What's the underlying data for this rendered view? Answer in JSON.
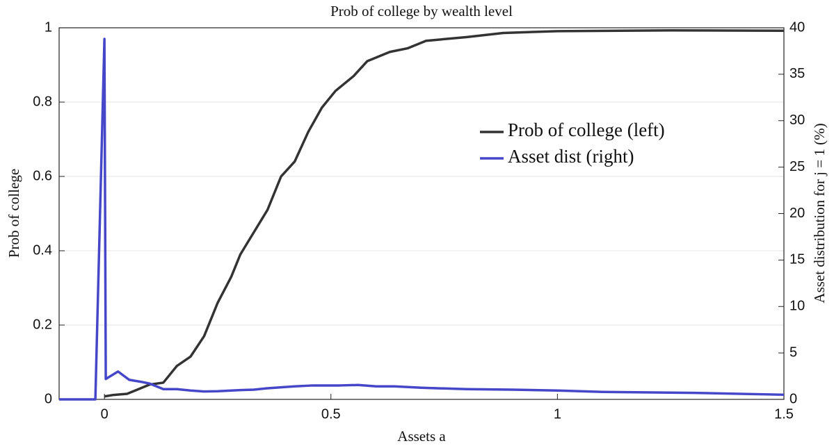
{
  "chart_data": {
    "type": "line",
    "title": "Prob of college by wealth level",
    "xlabel": "Assets a",
    "ylabel": "Prob of college",
    "y2label": "Asset distribution for j = 1 (%)",
    "xlim": [
      -0.1,
      1.5
    ],
    "xticks": [
      0,
      0.5,
      1,
      1.5
    ],
    "ylim": [
      0,
      1
    ],
    "yticks": [
      0,
      0.2,
      0.4,
      0.6,
      0.8,
      1
    ],
    "y2lim": [
      0,
      40
    ],
    "y2ticks": [
      0,
      5,
      10,
      15,
      20,
      25,
      30,
      35,
      40
    ],
    "grid": true,
    "legend": "center right",
    "series": [
      {
        "name": "Prob of college (left)",
        "color": "#333333",
        "x": [
          0,
          0.02,
          0.05,
          0.08,
          0.1,
          0.13,
          0.16,
          0.19,
          0.22,
          0.25,
          0.28,
          0.3,
          0.33,
          0.36,
          0.39,
          0.42,
          0.45,
          0.48,
          0.51,
          0.55,
          0.58,
          0.63,
          0.67,
          0.71,
          0.8,
          0.88,
          1.0,
          1.25,
          1.5
        ],
        "values": [
          0.008,
          0.012,
          0.015,
          0.03,
          0.04,
          0.045,
          0.09,
          0.115,
          0.17,
          0.26,
          0.33,
          0.39,
          0.45,
          0.51,
          0.6,
          0.64,
          0.72,
          0.785,
          0.83,
          0.87,
          0.91,
          0.935,
          0.945,
          0.965,
          0.975,
          0.986,
          0.991,
          0.993,
          0.992
        ]
      },
      {
        "name": "Asset dist (right)",
        "color": "#4646c8",
        "axis": "y2",
        "x": [
          -0.1,
          -0.02,
          0,
          0.003,
          0.03,
          0.055,
          0.08,
          0.1,
          0.13,
          0.16,
          0.19,
          0.22,
          0.25,
          0.3,
          0.33,
          0.36,
          0.42,
          0.46,
          0.52,
          0.56,
          0.6,
          0.64,
          0.7,
          0.8,
          0.9,
          1.0,
          1.1,
          1.3,
          1.5
        ],
        "values": [
          0,
          0,
          38.8,
          2.2,
          3.0,
          2.1,
          1.9,
          1.7,
          1.1,
          1.1,
          0.95,
          0.85,
          0.88,
          1.0,
          1.05,
          1.2,
          1.4,
          1.5,
          1.5,
          1.55,
          1.4,
          1.4,
          1.25,
          1.1,
          1.05,
          0.95,
          0.8,
          0.7,
          0.5
        ]
      }
    ]
  }
}
